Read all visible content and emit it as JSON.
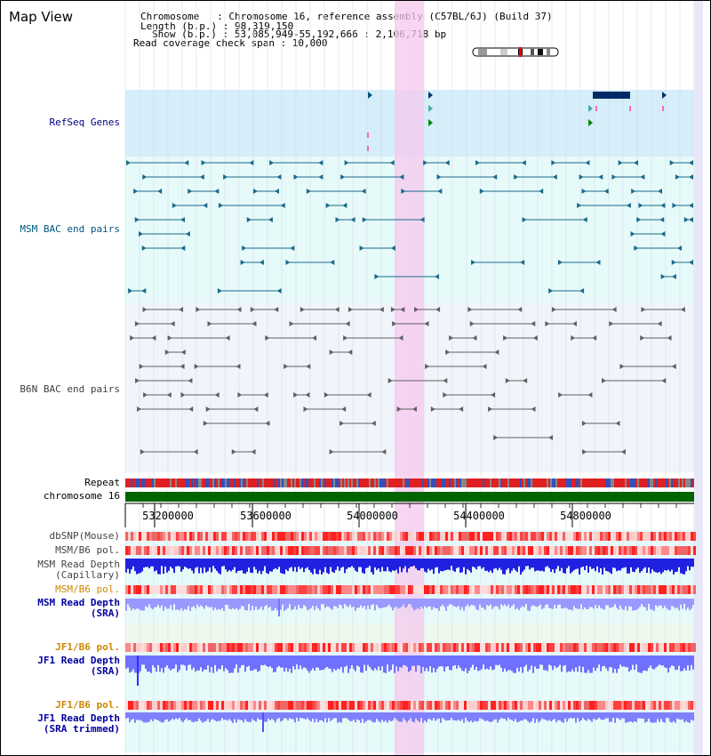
{
  "title": "Map View",
  "info": {
    "chromosome_line": "Chromosome   : Chromosome 16, reference assembly (C57BL/6J) (Build 37)",
    "length_line": "Length (b.p.) : 98,319,150",
    "show_line": "Show (b.p.) : 53,085,949-55,192,666 : 2,106,718 bp",
    "coverage_line": "Read coverage check span : 10,000"
  },
  "tracks": {
    "refseq": {
      "label": "RefSeq Genes",
      "color": "#000080"
    },
    "msm_bac": {
      "label": "MSM BAC end pairs",
      "color": "#005580"
    },
    "b6n_bac": {
      "label": "B6N BAC end pairs",
      "color": "#404040"
    },
    "repeat": {
      "label": "Repeat"
    },
    "chromosome": {
      "label": "chromosome 16"
    },
    "dbsnp": {
      "label": "dbSNP(Mouse)"
    },
    "msm_pol1": {
      "label": "MSM/B6 pol."
    },
    "msm_depth_cap": {
      "label": "MSM Read Depth\n(Capillary)"
    },
    "msm_pol2": {
      "label": "MSM/B6 pol."
    },
    "msm_depth_sra": {
      "label": "MSM Read Depth\n(SRA)"
    },
    "jf1_pol1": {
      "label": "JF1/B6 pol."
    },
    "jf1_depth_sra": {
      "label": "JF1 Read Depth\n(SRA)"
    },
    "jf1_pol2": {
      "label": "JF1/B6 pol."
    },
    "jf1_depth_trim": {
      "label": "JF1 Read Depth\n(SRA trimmed)"
    }
  },
  "axis": {
    "ticks": [
      "53200000",
      "53600000",
      "54000000",
      "54400000",
      "54800000"
    ]
  },
  "colors": {
    "blue_label": "#0000a0",
    "orange_label": "#cc8800",
    "highlight": "#f6c8ee",
    "refseq_bg": "#d6eefa",
    "msm_bg": "#e6fafa",
    "b6n_bg": "#f2f4fb",
    "chromosome_bar": "#006400",
    "depth_blue": "#2020e0",
    "depth_light": "#8888ff"
  }
}
